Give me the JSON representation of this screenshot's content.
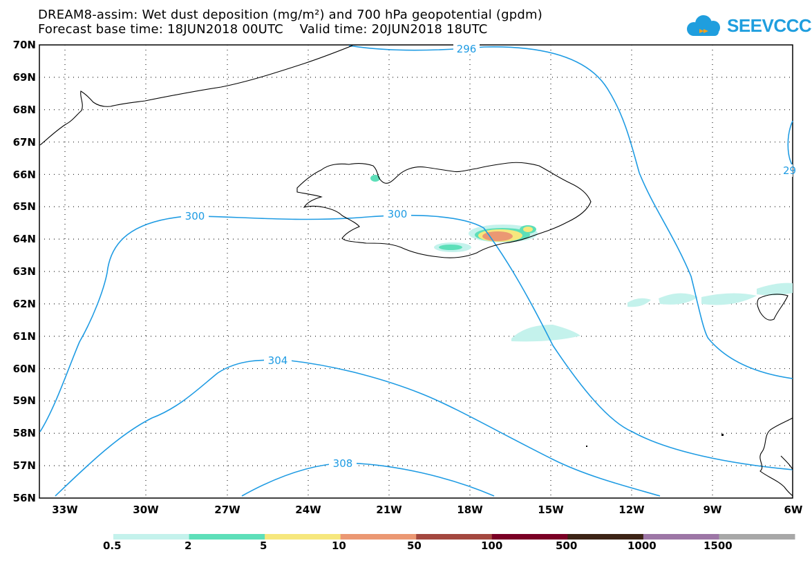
{
  "header": {
    "title_line1": "DREAM8-assim: Wet dust deposition (mg/m²) and 700 hPa geopotential (gpdm)",
    "title_line2": "Forecast base time: 18JUN2018 00UTC    Valid time: 20JUN2018 18UTC",
    "logo_text": "SEEVCCC"
  },
  "map": {
    "lat_labels": [
      "70N",
      "69N",
      "68N",
      "67N",
      "66N",
      "65N",
      "64N",
      "63N",
      "62N",
      "61N",
      "60N",
      "59N",
      "58N",
      "57N",
      "56N"
    ],
    "lon_labels": [
      "33W",
      "30W",
      "27W",
      "24W",
      "21W",
      "18W",
      "15W",
      "12W",
      "9W",
      "6W"
    ],
    "contour_labels": [
      "296",
      "300",
      "300",
      "304",
      "308",
      "29"
    ],
    "contour_color": "#1e9be3",
    "coast_color": "#000000"
  },
  "colorbar": {
    "colors": [
      "#c4f2ec",
      "#5ddfb9",
      "#f6e77d",
      "#eb9873",
      "#a4483f",
      "#7a0025",
      "#3c2316",
      "#9d76a6",
      "#a8a8a8"
    ],
    "labels": [
      "0.5",
      "2",
      "5",
      "10",
      "50",
      "100",
      "500",
      "1000",
      "1500"
    ]
  }
}
